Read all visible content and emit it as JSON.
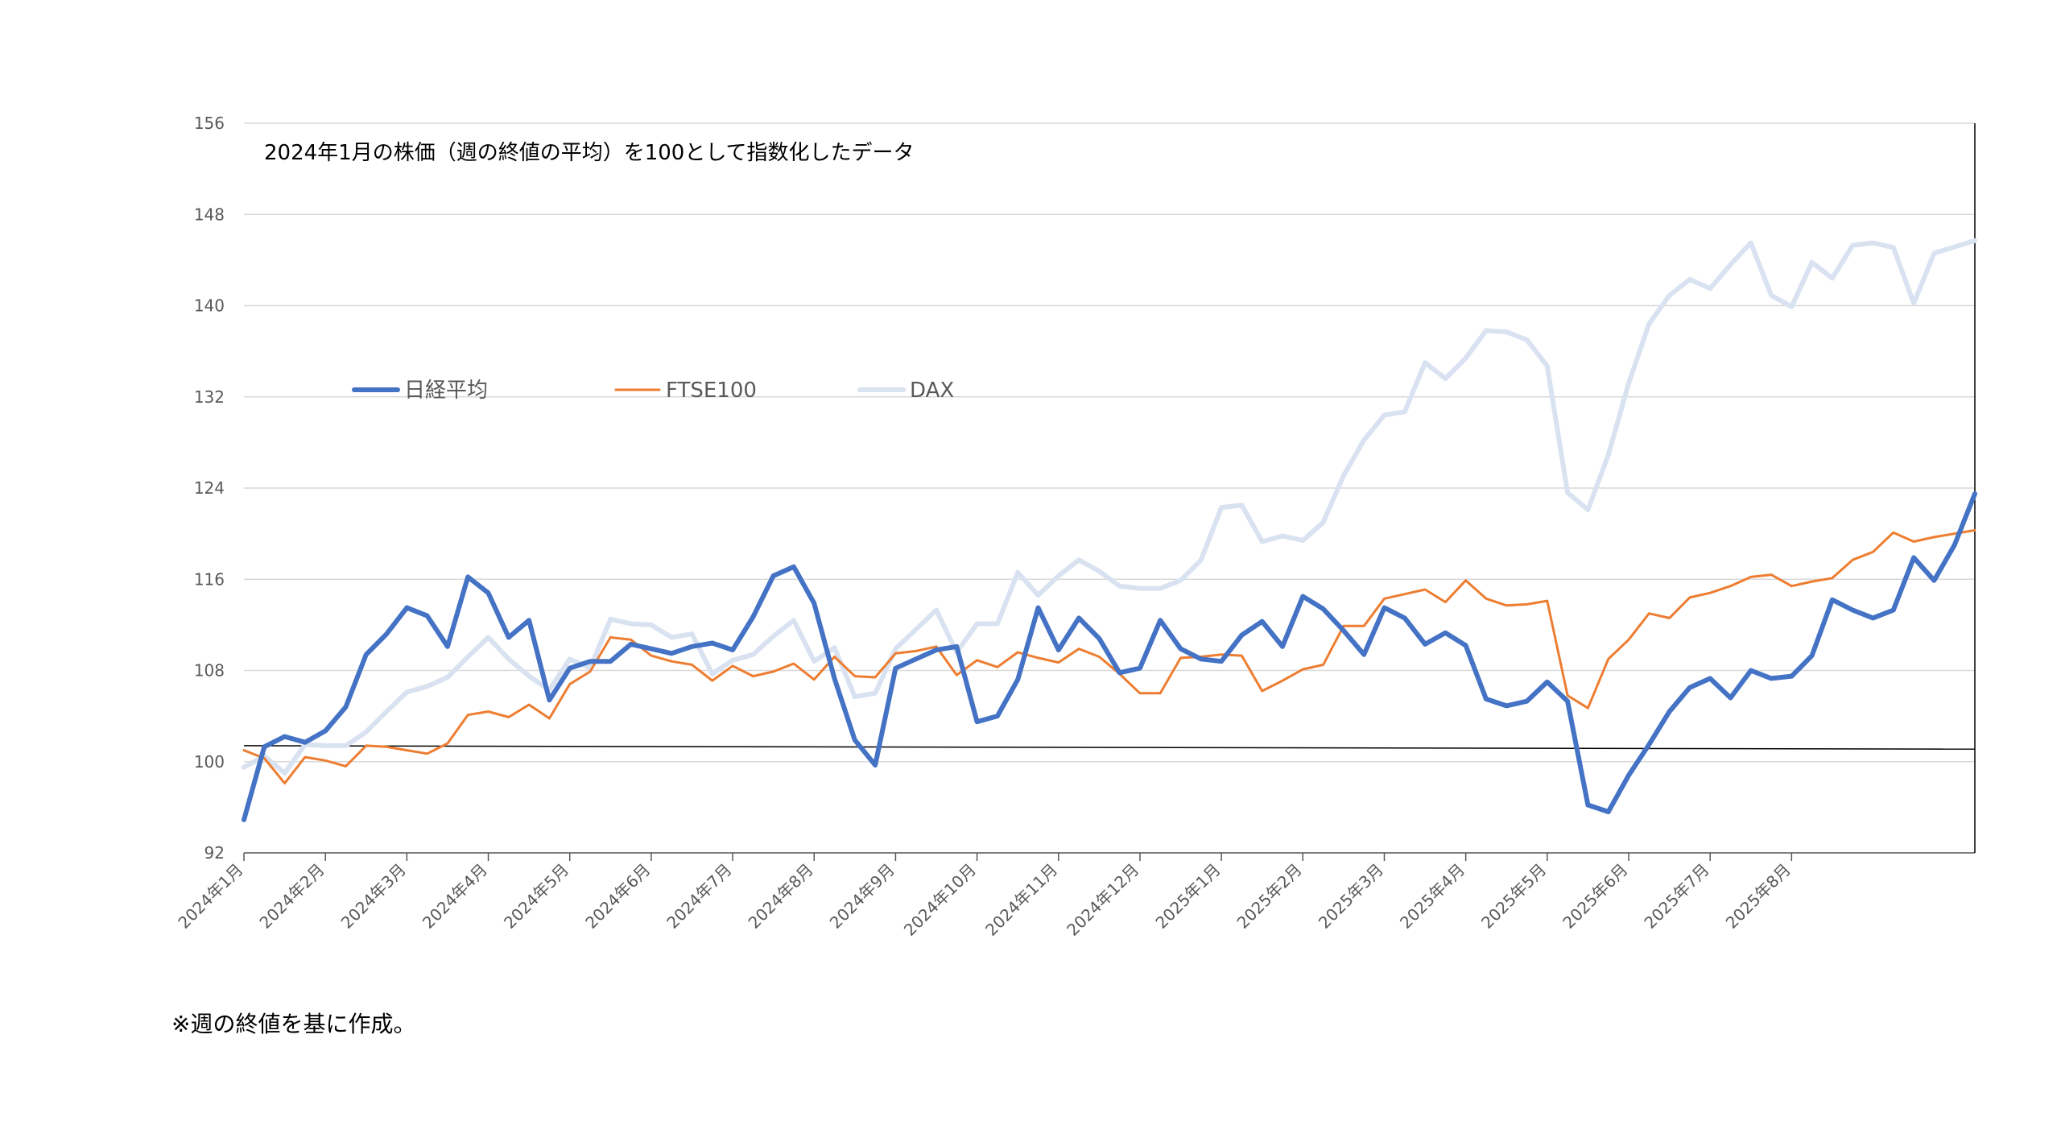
{
  "chart_data": {
    "type": "line",
    "subtitle": "2024年1月の株価（週の終値の平均）を100として指数化したデータ",
    "footnote": "※週の終値を基に作成。",
    "ylim": [
      92,
      156
    ],
    "yticks": [
      92,
      100,
      108,
      116,
      124,
      132,
      140,
      148,
      156
    ],
    "grid": true,
    "legend_position": "upper-left",
    "x_month_labels": [
      "2024年1月",
      "2024年2月",
      "2024年3月",
      "2024年4月",
      "2024年5月",
      "2024年6月",
      "2024年7月",
      "2024年8月",
      "2024年9月",
      "2024年10月",
      "2024年11月",
      "2024年12月",
      "2025年1月",
      "2025年2月",
      "2025年3月",
      "2025年4月",
      "2025年5月",
      "2025年6月",
      "2025年7月",
      "2025年8月"
    ],
    "x_month_label_index": [
      0,
      4,
      8,
      12,
      16,
      20,
      24,
      28,
      32,
      36,
      40,
      44,
      48,
      52,
      56,
      60,
      64,
      68,
      72,
      76
    ],
    "reference_line": {
      "from": 101.4,
      "to": 101.1,
      "color": "#000000"
    },
    "series": [
      {
        "name": "日経平均",
        "color": "#4472C4",
        "width": 6,
        "values": [
          94.9,
          101.3,
          102.2,
          101.7,
          102.7,
          104.8,
          109.4,
          111.2,
          113.5,
          112.8,
          110.1,
          116.2,
          114.8,
          110.9,
          112.4,
          105.4,
          108.2,
          108.8,
          108.8,
          110.3,
          109.9,
          109.5,
          110.1,
          110.4,
          109.8,
          112.7,
          116.3,
          117.1,
          113.9,
          107.3,
          101.9,
          99.7,
          108.2,
          109.0,
          109.8,
          110.1,
          103.5,
          104.0,
          107.2,
          113.5,
          109.8,
          112.6,
          110.8,
          107.8,
          108.2,
          112.4,
          109.9,
          109.0,
          108.8,
          111.1,
          112.3,
          110.1,
          114.5,
          113.4,
          111.5,
          109.4,
          113.5,
          112.6,
          110.3,
          111.3,
          110.2,
          105.5,
          104.9,
          105.3,
          107.0,
          105.3,
          96.2,
          95.6,
          98.8,
          101.5,
          104.4,
          106.5,
          107.3,
          105.6,
          108.0,
          107.3,
          107.5,
          109.3,
          114.2,
          113.3,
          112.6,
          113.3,
          117.9,
          115.9,
          119.0,
          123.5
        ],
        "point_index": [
          0,
          1,
          2,
          3,
          4,
          5,
          6,
          7,
          8,
          9,
          10,
          11,
          12,
          13,
          14,
          15,
          16,
          17,
          18,
          19,
          20,
          21,
          22,
          23,
          24,
          25,
          26,
          27,
          28,
          29,
          30,
          31,
          32,
          33,
          34,
          35,
          36,
          37,
          38,
          39,
          40,
          41,
          42,
          43,
          44,
          45,
          46,
          47,
          48,
          49,
          50,
          51,
          52,
          53,
          54,
          55,
          56,
          57,
          58,
          59,
          60,
          61,
          62,
          63,
          64,
          65,
          66,
          67,
          68,
          69,
          70,
          71,
          72,
          73,
          74,
          75,
          76,
          77,
          78,
          79,
          80,
          81,
          82,
          83,
          84,
          85
        ]
      },
      {
        "name": "FTSE100",
        "color": "#ED7D31",
        "width": 3,
        "values": [
          101.0,
          100.3,
          98.1,
          100.4,
          100.1,
          99.6,
          101.4,
          101.3,
          101.0,
          100.7,
          101.6,
          104.1,
          104.4,
          103.9,
          105.0,
          103.8,
          106.8,
          107.9,
          110.9,
          110.7,
          109.3,
          108.8,
          108.5,
          107.1,
          108.4,
          107.5,
          107.9,
          108.6,
          107.2,
          109.2,
          107.5,
          107.4,
          109.5,
          109.7,
          110.1,
          107.6,
          108.9,
          108.3,
          109.6,
          109.1,
          108.7,
          109.9,
          109.2,
          107.7,
          106.0,
          106.0,
          109.1,
          109.2,
          109.4,
          109.3,
          106.2,
          107.1,
          108.1,
          108.5,
          111.9,
          111.9,
          114.3,
          114.7,
          115.1,
          114.0,
          115.9,
          114.3,
          113.7,
          113.8,
          114.1,
          105.8,
          104.7,
          109.0,
          110.7,
          113.0,
          112.6,
          114.4,
          114.8,
          115.4,
          116.2,
          116.4,
          115.4,
          115.8,
          116.1,
          117.7,
          118.4,
          120.1,
          119.3,
          119.7,
          120.3
        ],
        "point_index": [
          0,
          1,
          2,
          3,
          4,
          5,
          6,
          7,
          8,
          9,
          10,
          11,
          12,
          13,
          14,
          15,
          16,
          17,
          18,
          19,
          20,
          21,
          22,
          23,
          24,
          25,
          26,
          27,
          28,
          29,
          30,
          31,
          32,
          33,
          34,
          35,
          36,
          37,
          38,
          39,
          40,
          41,
          42,
          43,
          44,
          45,
          46,
          47,
          48,
          49,
          50,
          51,
          52,
          53,
          54,
          55,
          56,
          57,
          58,
          59,
          60,
          61,
          62,
          63,
          64,
          65,
          66,
          67,
          68,
          69,
          70,
          71,
          72,
          73,
          74,
          75,
          76,
          77,
          78,
          79,
          80,
          81,
          82,
          83,
          85
        ]
      },
      {
        "name": "DAX",
        "color": "#D9E2F1",
        "width": 6,
        "values": [
          99.5,
          100.5,
          99.0,
          101.5,
          101.4,
          101.4,
          102.6,
          104.4,
          106.1,
          106.6,
          107.4,
          109.2,
          110.9,
          109.0,
          107.5,
          106.3,
          109.0,
          108.2,
          112.5,
          112.1,
          112.0,
          110.9,
          111.2,
          107.7,
          108.9,
          109.4,
          111.0,
          112.4,
          108.8,
          110.0,
          105.7,
          106.0,
          109.9,
          111.6,
          113.3,
          109.6,
          112.1,
          112.1,
          116.6,
          114.6,
          116.3,
          117.7,
          116.7,
          115.4,
          115.2,
          115.2,
          115.9,
          117.7,
          122.3,
          122.5,
          119.3,
          119.8,
          119.4,
          121.0,
          125.1,
          128.2,
          130.4,
          130.7,
          135.0,
          133.6,
          135.4,
          137.8,
          137.7,
          137.0,
          134.7,
          123.6,
          122.1,
          126.9,
          133.2,
          138.4,
          140.9,
          142.3,
          141.5,
          143.6,
          145.5,
          140.9,
          139.9,
          143.8,
          142.4,
          145.3,
          145.5,
          145.1,
          140.2,
          144.6,
          145.7
        ],
        "point_index": [
          0,
          1,
          2,
          3,
          4,
          5,
          6,
          7,
          8,
          9,
          10,
          11,
          12,
          13,
          14,
          15,
          16,
          17,
          18,
          19,
          20,
          21,
          22,
          23,
          24,
          25,
          26,
          27,
          28,
          29,
          30,
          31,
          32,
          33,
          34,
          35,
          36,
          37,
          38,
          39,
          40,
          41,
          42,
          43,
          44,
          45,
          46,
          47,
          48,
          49,
          50,
          51,
          52,
          53,
          54,
          55,
          56,
          57,
          58,
          59,
          60,
          61,
          62,
          63,
          64,
          65,
          66,
          67,
          68,
          69,
          70,
          71,
          72,
          73,
          74,
          75,
          76,
          77,
          78,
          79,
          80,
          81,
          82,
          83,
          85
        ]
      }
    ]
  }
}
